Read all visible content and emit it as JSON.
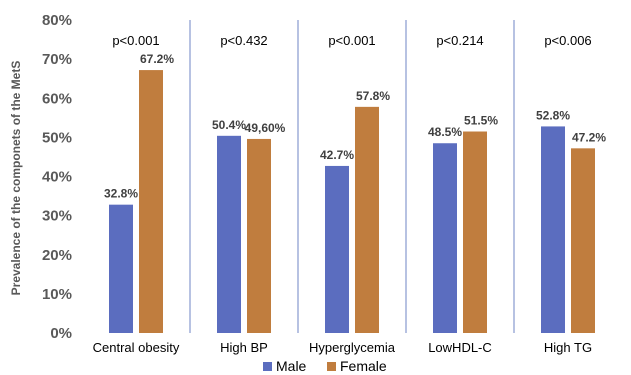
{
  "chart_data": {
    "type": "bar",
    "categories": [
      "Central obesity",
      "High BP",
      "Hyperglycemia",
      "LowHDL-C",
      "High TG"
    ],
    "series": [
      {
        "name": "Male",
        "values": [
          32.8,
          50.4,
          42.7,
          48.5,
          52.8
        ],
        "labels": [
          "32.8%",
          "50.4%",
          "42.7%",
          "48.5%",
          "52.8%"
        ],
        "color": "#5b6dbf"
      },
      {
        "name": "Female",
        "values": [
          67.2,
          49.6,
          57.8,
          51.5,
          47.2
        ],
        "labels": [
          "67.2%",
          "49,60%",
          "57.8%",
          "51.5%",
          "47.2%"
        ],
        "color": "#c07d3e"
      }
    ],
    "p_values": [
      "p<0.001",
      "p<0.432",
      "p<0.001",
      "p<0.214",
      "p<0.006"
    ],
    "ylabel": "Prevalence of the componets of the  MetS",
    "ylim": [
      0,
      80
    ],
    "yticks": [
      "0%",
      "10%",
      "20%",
      "30%",
      "40%",
      "50%",
      "60%",
      "70%",
      "80%"
    ],
    "legend_position": "bottom",
    "separator_color": "#6f86c6"
  }
}
